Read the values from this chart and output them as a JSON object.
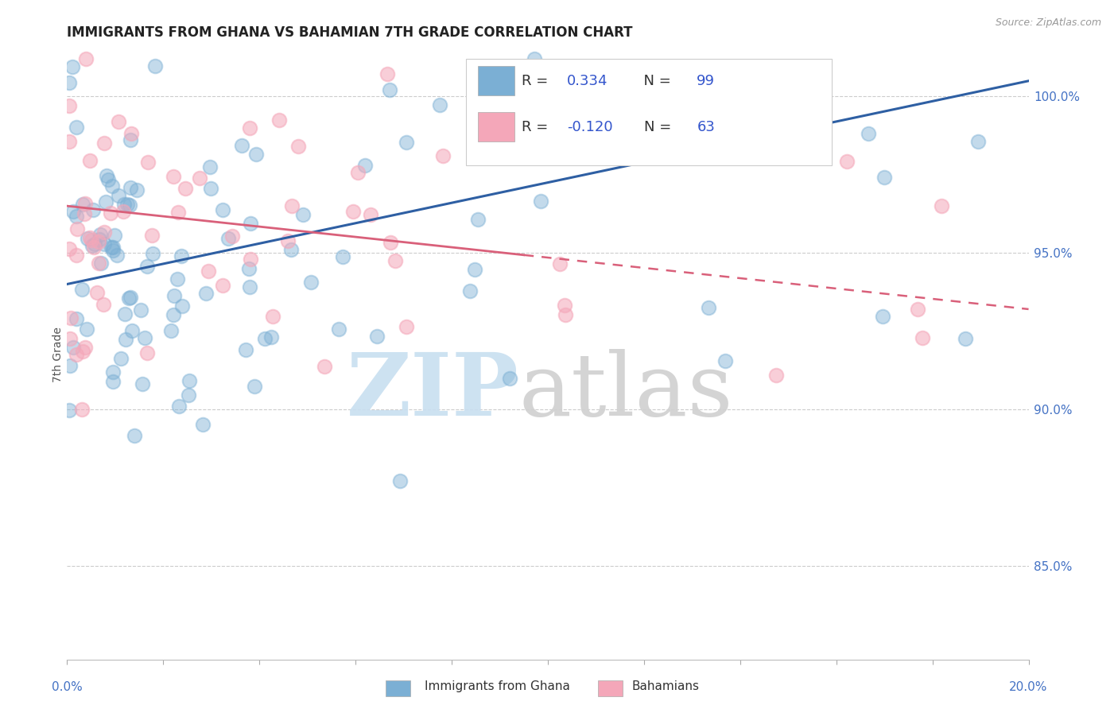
{
  "title": "IMMIGRANTS FROM GHANA VS BAHAMIAN 7TH GRADE CORRELATION CHART",
  "source": "Source: ZipAtlas.com",
  "ylabel": "7th Grade",
  "x_min": 0.0,
  "x_max": 20.0,
  "y_min": 82.0,
  "y_max": 101.5,
  "y_ticks": [
    85.0,
    90.0,
    95.0,
    100.0
  ],
  "blue_color": "#7bafd4",
  "pink_color": "#f4a7b9",
  "blue_line_color": "#2e5fa3",
  "pink_line_color": "#d9607a",
  "watermark_zip_color": "#c8dff0",
  "watermark_atlas_color": "#d0d0d0",
  "blue_seed": 101,
  "pink_seed": 202
}
